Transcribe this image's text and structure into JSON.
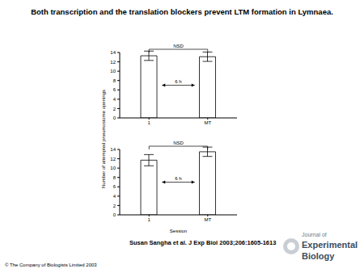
{
  "title": "Both transcription and the translation blockers prevent LTM formation in Lymnaea.",
  "chart_data": [
    {
      "type": "bar",
      "categories": [
        "1",
        "MT"
      ],
      "values": [
        13.3,
        13.1
      ],
      "errors": [
        1.0,
        1.0
      ],
      "color": "#ffffff",
      "ylim": [
        0,
        14
      ],
      "yticks": [
        0,
        2,
        4,
        6,
        8,
        10,
        12,
        14
      ],
      "annotations": [
        "NSD",
        "6 h"
      ]
    },
    {
      "type": "bar",
      "categories": [
        "1",
        "MT"
      ],
      "values": [
        11.7,
        13.5
      ],
      "errors": [
        1.2,
        1.0
      ],
      "color": "#ffffff",
      "ylim": [
        0,
        14
      ],
      "yticks": [
        0,
        2,
        4,
        6,
        8,
        10,
        12,
        14
      ],
      "annotations": [
        "NSD",
        "6 h"
      ],
      "xlabel": "Session",
      "ylabel": "Number of attempted pneumostome openings"
    }
  ],
  "citation": "Susan Sangha et al. J Exp Biol 2003;206:1605-1613",
  "logo": [
    "Journal of",
    "Experimental",
    "Biology"
  ],
  "copyright": "© The Company of Biologists Limited 2003"
}
